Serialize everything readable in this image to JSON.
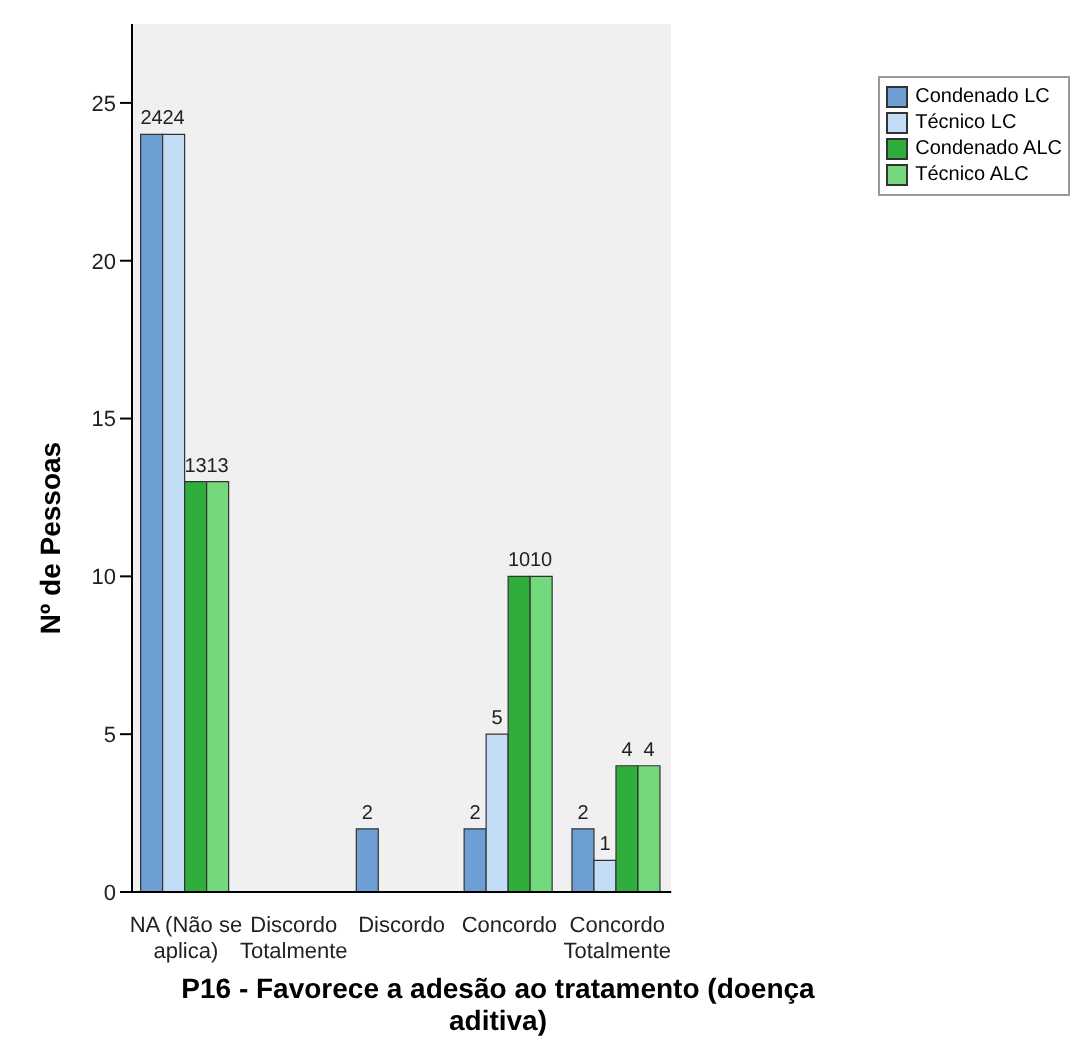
{
  "chart_data": {
    "type": "bar",
    "xlabel": "P16 - Favorece a adesão ao tratamento (doença aditiva)",
    "ylabel": "Nº de Pessoas",
    "categories": [
      "NA (Não se aplica)",
      "Discordo Totalmente",
      "Discordo",
      "Concordo",
      "Concordo Totalmente"
    ],
    "series": [
      {
        "name": "Condenado LC",
        "color": "#6e9fd4",
        "values": [
          24,
          null,
          2,
          2,
          2
        ]
      },
      {
        "name": "Técnico LC",
        "color": "#c4ddf6",
        "values": [
          24,
          null,
          null,
          5,
          1
        ]
      },
      {
        "name": "Condenado ALC",
        "color": "#2fae3c",
        "values": [
          13,
          null,
          null,
          10,
          4
        ]
      },
      {
        "name": "Técnico ALC",
        "color": "#74d97c",
        "values": [
          13,
          null,
          null,
          10,
          4
        ]
      }
    ],
    "ylim": [
      0,
      27.5
    ],
    "yticks": [
      0,
      5,
      10,
      15,
      20,
      25
    ],
    "grid": false,
    "legend": "top right",
    "data_labels": true
  }
}
